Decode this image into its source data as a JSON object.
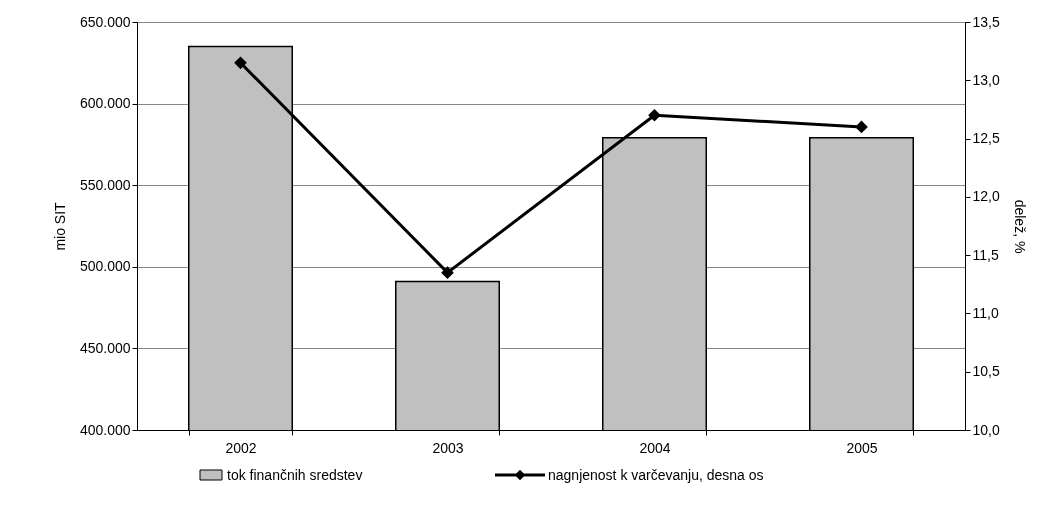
{
  "chart_data": {
    "type": "bar",
    "categories": [
      "2002",
      "2003",
      "2004",
      "2005"
    ],
    "series": [
      {
        "name": "tok finančnih sredstev",
        "color": "#c0c0c0",
        "values": [
          635000,
          491000,
          579000,
          579000
        ]
      },
      {
        "name": "nagnjenost k varčevanju, desna os",
        "type": "line",
        "axis": "y2",
        "color": "#000000",
        "marker": "diamond",
        "line_style": "solid",
        "values": [
          13.15,
          11.35,
          12.7,
          12.6
        ]
      }
    ],
    "ylabel": "mio SIT",
    "y2label": "delež, %",
    "ylim": [
      400000,
      650000
    ],
    "yticks": [
      {
        "value": 400000,
        "label": "400.000"
      },
      {
        "value": 450000,
        "label": "450.000"
      },
      {
        "value": 500000,
        "label": "500.000"
      },
      {
        "value": 550000,
        "label": "550.000"
      },
      {
        "value": 600000,
        "label": "600.000"
      },
      {
        "value": 650000,
        "label": "650.000"
      }
    ],
    "y2lim": [
      10,
      13.5
    ],
    "y2ticks": [
      {
        "value": 10,
        "label": "10,0"
      },
      {
        "value": 10.5,
        "label": "10,5"
      },
      {
        "value": 11,
        "label": "11,0"
      },
      {
        "value": 11.5,
        "label": "11,5"
      },
      {
        "value": 12,
        "label": "12,0"
      },
      {
        "value": 12.5,
        "label": "12,5"
      },
      {
        "value": 13,
        "label": "13,0"
      },
      {
        "value": 13.5,
        "label": "13,5"
      }
    ],
    "grid": "y",
    "legend": "bottom"
  }
}
